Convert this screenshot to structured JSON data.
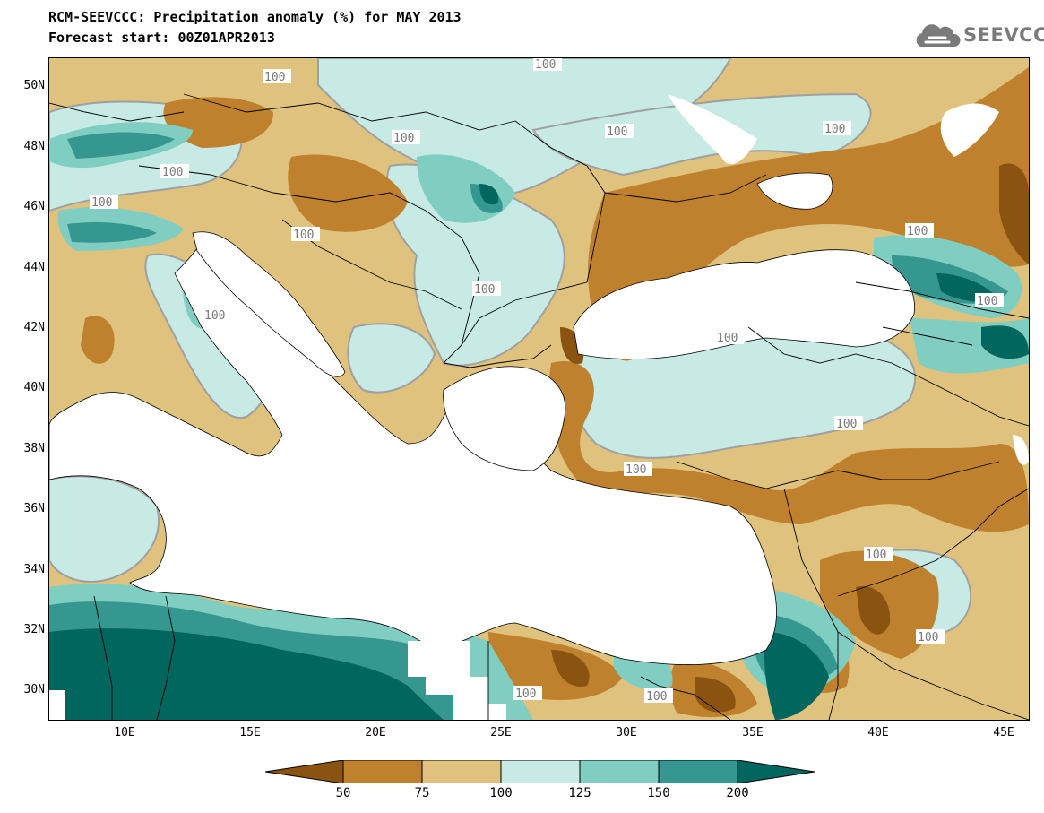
{
  "header": {
    "title": "RCM-SEEVCCC: Precipitation anomaly (%) for MAY 2013",
    "subtitle": "Forecast start: 00Z01APR2013",
    "logo_text": "SEEVCCC",
    "logo_icon": "cloud-icon"
  },
  "map": {
    "lat_labels": [
      "50N",
      "48N",
      "46N",
      "44N",
      "42N",
      "40N",
      "38N",
      "36N",
      "34N",
      "32N",
      "30N"
    ],
    "lon_labels": [
      "10E",
      "15E",
      "20E",
      "25E",
      "30E",
      "35E",
      "40E",
      "45E"
    ],
    "contour_label": "100",
    "colors": {
      "below_50": "#8a5410",
      "c50_75": "#bf812d",
      "c75_100": "#dfc27d",
      "c100_125": "#c7eae5",
      "c125_150": "#80cdc1",
      "c150_200": "#35978f",
      "above_200": "#01665e",
      "sea": "#ffffff",
      "contour": "#a0a0a0"
    }
  },
  "colorbar": {
    "labels": [
      "50",
      "75",
      "100",
      "125",
      "150",
      "200"
    ]
  }
}
